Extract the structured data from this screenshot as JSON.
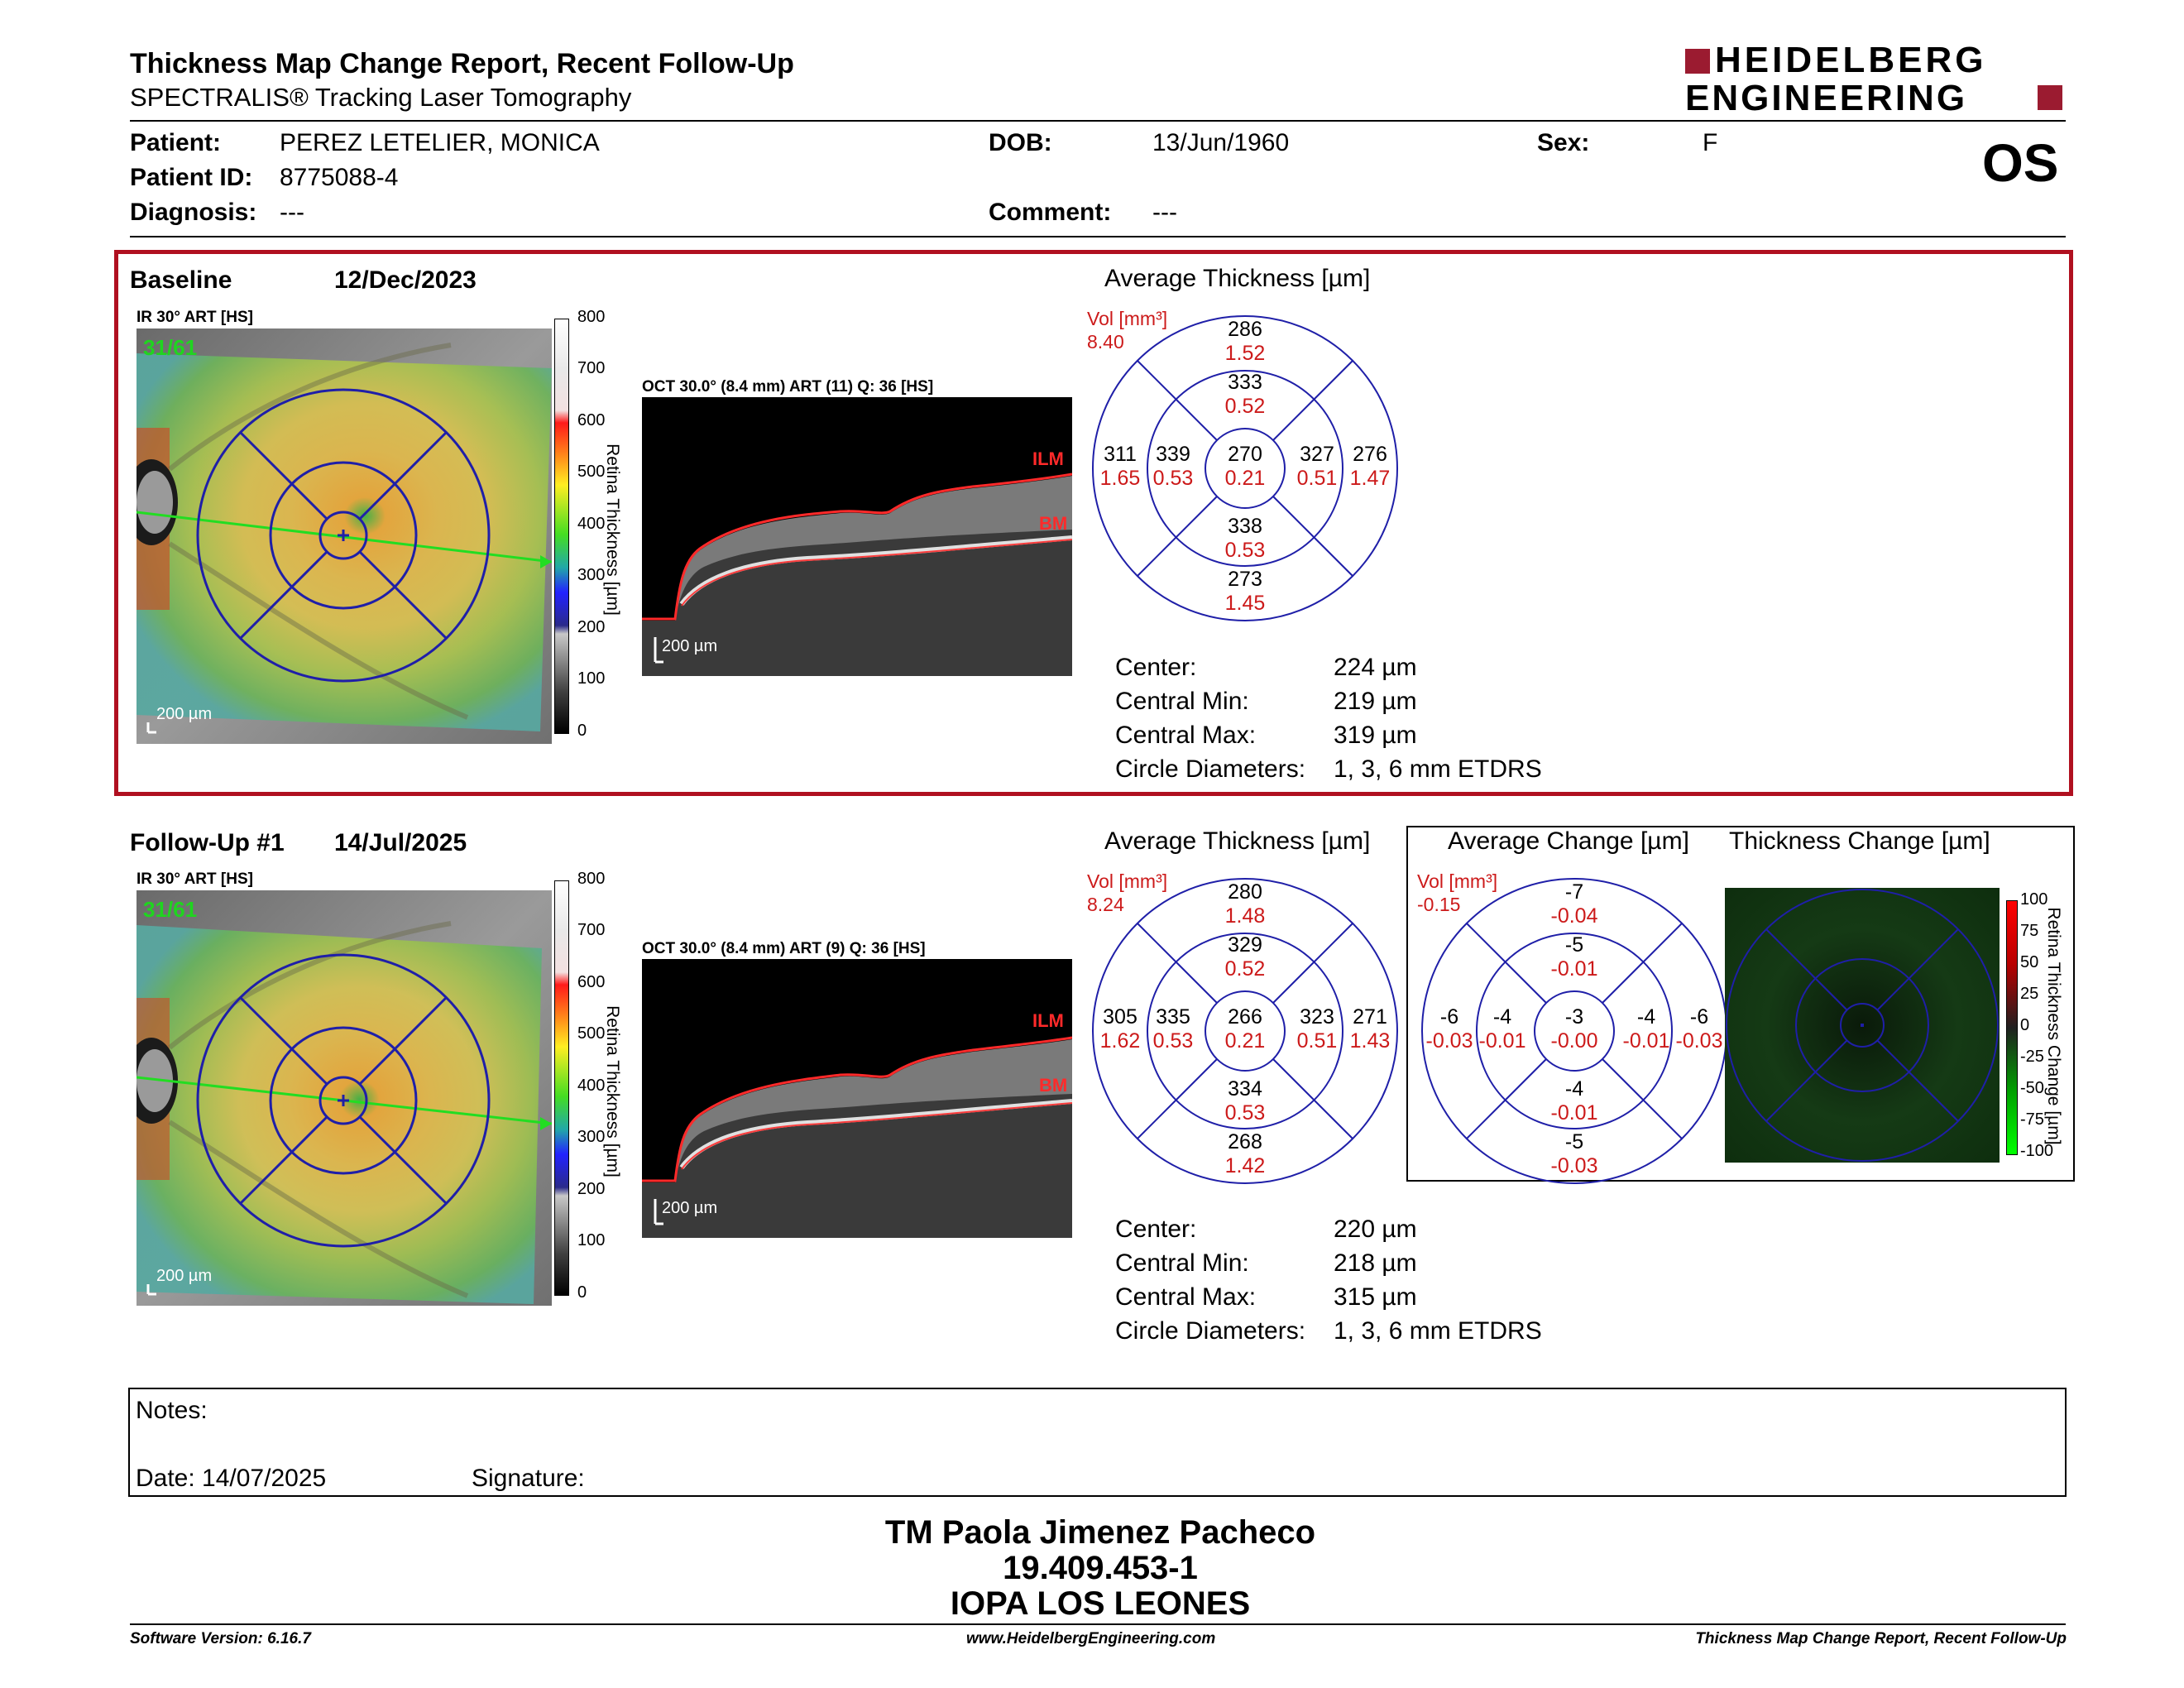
{
  "report": {
    "title": "Thickness Map Change Report, Recent Follow-Up",
    "subtitle": "SPECTRALIS® Tracking Laser Tomography",
    "eye": "OS",
    "logo_line1": "HEIDELBERG",
    "logo_line2": "ENGINEERING"
  },
  "patient": {
    "patient_label": "Patient:",
    "patient_value": "PEREZ LETELIER, MONICA",
    "id_label": "Patient ID:",
    "id_value": "8775088-4",
    "diagnosis_label": "Diagnosis:",
    "diagnosis_value": "---",
    "dob_label": "DOB:",
    "dob_value": "13/Jun/1960",
    "comment_label": "Comment:",
    "comment_value": "---",
    "sex_label": "Sex:",
    "sex_value": "F"
  },
  "baseline": {
    "label": "Baseline",
    "date": "12/Dec/2023",
    "ir_label": "IR 30° ART [HS]",
    "ir_counter": "31/61",
    "oct_label": "OCT 30.0° (8.4 mm) ART (11) Q: 36 [HS]",
    "scale_bar": "200 µm",
    "colorbar_ticks": [
      "800",
      "700",
      "600",
      "500",
      "400",
      "300",
      "200",
      "100",
      "0"
    ],
    "colorbar_title": "Retina Thickness [µm]",
    "avg_title": "Average Thickness [µm]",
    "vol_label": "Vol [mm³]",
    "vol_value": "8.40",
    "sectors": {
      "center": {
        "t": "270",
        "v": "0.21"
      },
      "inner_n": {
        "t": "333",
        "v": "0.52"
      },
      "inner_s": {
        "t": "338",
        "v": "0.53"
      },
      "inner_w": {
        "t": "339",
        "v": "0.53"
      },
      "inner_e": {
        "t": "327",
        "v": "0.51"
      },
      "outer_n": {
        "t": "286",
        "v": "1.52"
      },
      "outer_s": {
        "t": "273",
        "v": "1.45"
      },
      "outer_w": {
        "t": "311",
        "v": "1.65"
      },
      "outer_e": {
        "t": "276",
        "v": "1.47"
      }
    },
    "stats": [
      {
        "label": "Center:",
        "value": "224 µm"
      },
      {
        "label": "Central Min:",
        "value": "219 µm"
      },
      {
        "label": "Central Max:",
        "value": "319 µm"
      },
      {
        "label": "Circle Diameters:",
        "value": "1, 3, 6 mm ETDRS"
      }
    ]
  },
  "followup": {
    "label": "Follow-Up #1",
    "date": "14/Jul/2025",
    "ir_label": "IR 30° ART [HS]",
    "ir_counter": "31/61",
    "oct_label": "OCT 30.0° (8.4 mm) ART (9) Q: 36 [HS]",
    "scale_bar": "200 µm",
    "colorbar_ticks": [
      "800",
      "700",
      "600",
      "500",
      "400",
      "300",
      "200",
      "100",
      "0"
    ],
    "colorbar_title": "Retina Thickness [µm]",
    "avg_title": "Average Thickness [µm]",
    "vol_label": "Vol [mm³]",
    "vol_value": "8.24",
    "sectors": {
      "center": {
        "t": "266",
        "v": "0.21"
      },
      "inner_n": {
        "t": "329",
        "v": "0.52"
      },
      "inner_s": {
        "t": "334",
        "v": "0.53"
      },
      "inner_w": {
        "t": "335",
        "v": "0.53"
      },
      "inner_e": {
        "t": "323",
        "v": "0.51"
      },
      "outer_n": {
        "t": "280",
        "v": "1.48"
      },
      "outer_s": {
        "t": "268",
        "v": "1.42"
      },
      "outer_w": {
        "t": "305",
        "v": "1.62"
      },
      "outer_e": {
        "t": "271",
        "v": "1.43"
      }
    },
    "stats": [
      {
        "label": "Center:",
        "value": "220 µm"
      },
      {
        "label": "Central Min:",
        "value": "218 µm"
      },
      {
        "label": "Central Max:",
        "value": "315 µm"
      },
      {
        "label": "Circle Diameters:",
        "value": "1, 3, 6 mm ETDRS"
      }
    ]
  },
  "change": {
    "avg_title": "Average Change [µm]",
    "map_title": "Thickness Change [µm]",
    "vol_label": "Vol [mm³]",
    "vol_value": "-0.15",
    "sectors": {
      "center": {
        "t": "-3",
        "v": "-0.00"
      },
      "inner_n": {
        "t": "-5",
        "v": "-0.01"
      },
      "inner_s": {
        "t": "-4",
        "v": "-0.01"
      },
      "inner_w": {
        "t": "-4",
        "v": "-0.01"
      },
      "inner_e": {
        "t": "-4",
        "v": "-0.01"
      },
      "outer_n": {
        "t": "-7",
        "v": "-0.04"
      },
      "outer_s": {
        "t": "-5",
        "v": "-0.03"
      },
      "outer_w": {
        "t": "-6",
        "v": "-0.03"
      },
      "outer_e": {
        "t": "-6",
        "v": "-0.03"
      }
    },
    "colorbar_ticks": [
      "100",
      "75",
      "50",
      "25",
      "0",
      "-25",
      "-50",
      "-75",
      "-100"
    ],
    "colorbar_title": "Retina Thickness Change [µm]"
  },
  "notes": {
    "notes_label": "Notes:",
    "date_label": "Date: 14/07/2025",
    "signature_label": "Signature:"
  },
  "signatory": {
    "name": "TM Paola Jimenez Pacheco",
    "id": "19.409.453-1",
    "institution": "IOPA LOS LEONES"
  },
  "footer": {
    "software": "Software Version: 6.16.7",
    "website": "www.HeidelbergEngineering.com",
    "report_name": "Thickness Map Change Report, Recent Follow-Up"
  },
  "colors": {
    "accent_red": "#b01020",
    "grid_blue": "#1f1fa8",
    "value_red": "#cc1a1a"
  }
}
